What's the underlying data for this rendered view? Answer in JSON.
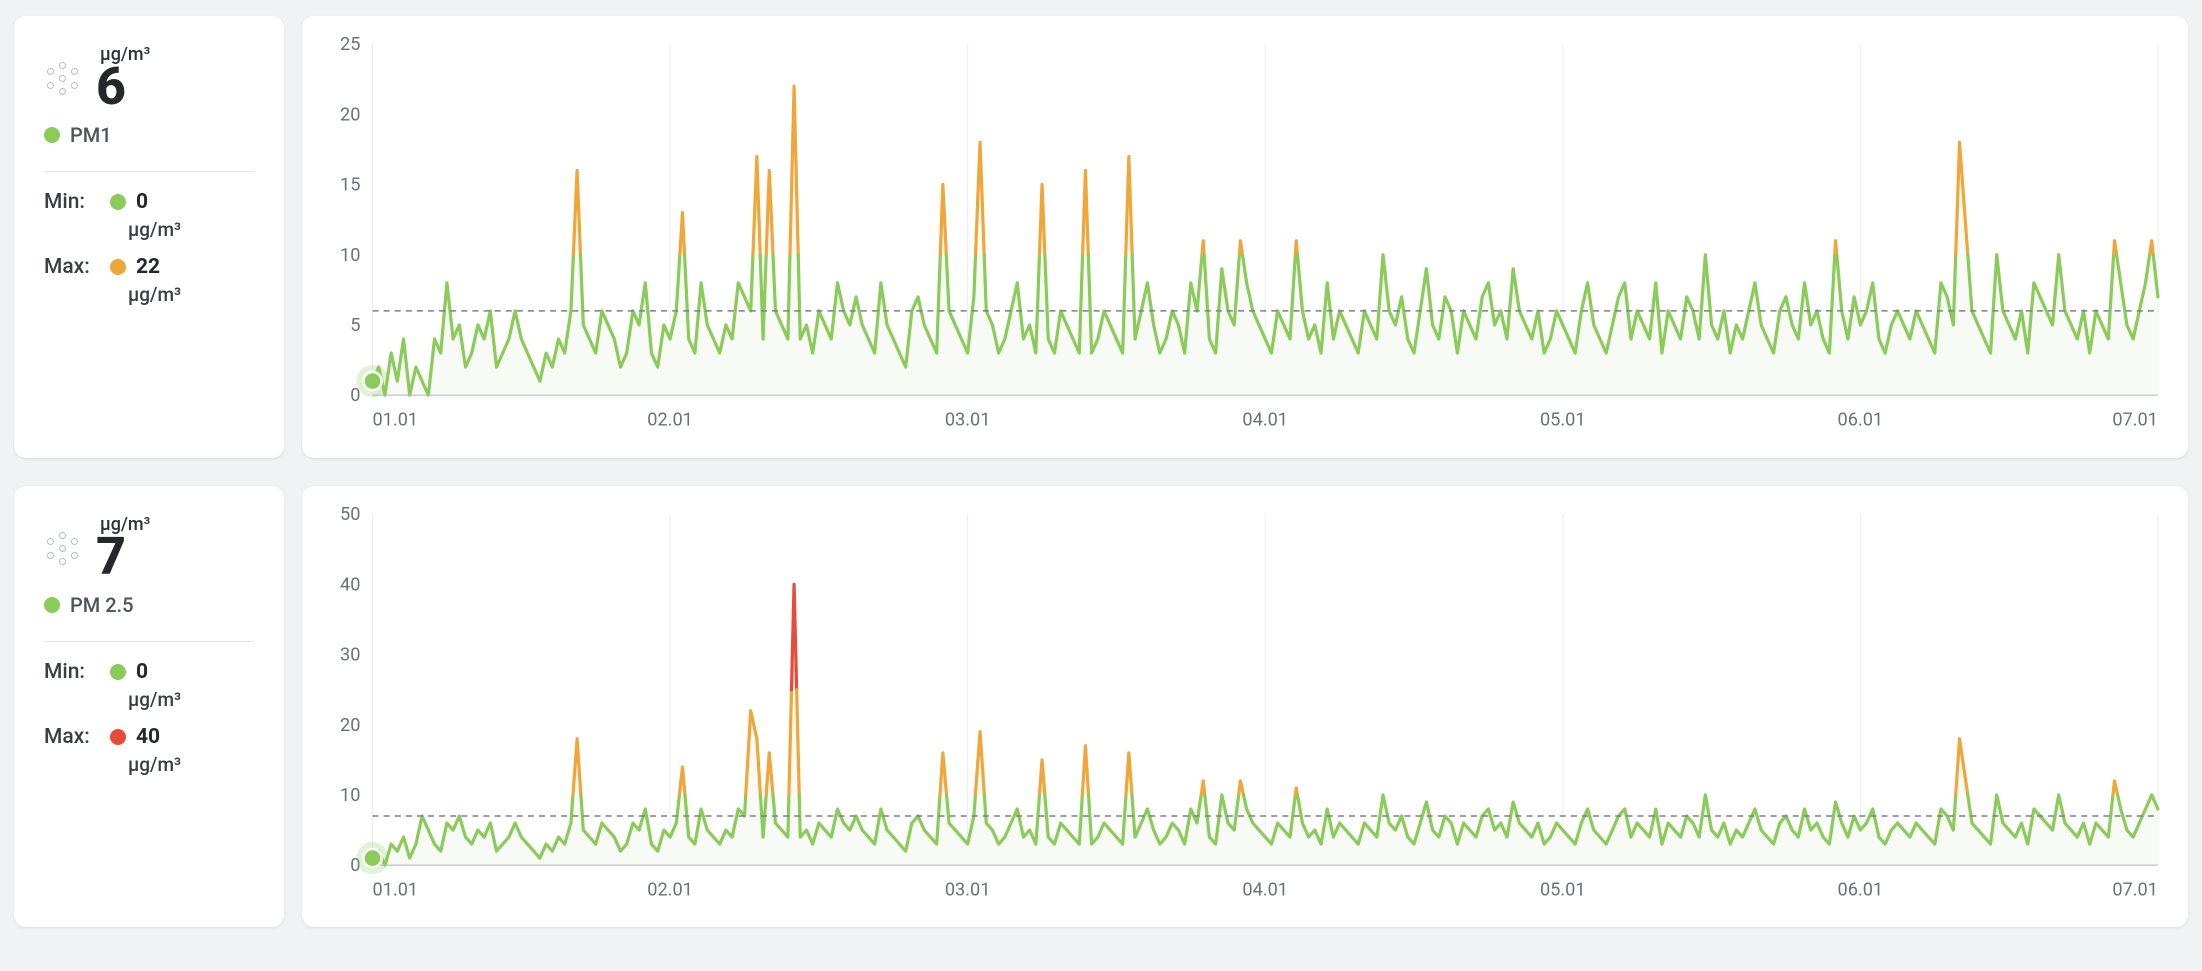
{
  "colors": {
    "green": "#8bcb5a",
    "orange": "#f0a73a",
    "red": "#e94b3a",
    "grid": "#ececee",
    "baseline": "#b1b4ba",
    "avg_dash": "#7b8089",
    "axis_text": "#6c7079",
    "card_bg": "#ffffff",
    "page_bg": "#f1f2f3",
    "area_fill": "#f8faf5"
  },
  "typography": {
    "big_value_fontsize": 52,
    "axis_fontsize": 18,
    "label_fontsize": 20
  },
  "sensors": [
    {
      "id": "pm1",
      "name_label": "PM1",
      "unit": "µg/m³",
      "current_value": "6",
      "current_color_key": "green",
      "min_label": "Min:",
      "min_value": "0",
      "min_color_key": "green",
      "max_label": "Max:",
      "max_value": "22",
      "max_color_key": "orange",
      "chart": {
        "type": "line",
        "ylim": [
          0,
          25
        ],
        "ytick_step": 5,
        "yticks": [
          0,
          5,
          10,
          15,
          20,
          25
        ],
        "x_labels": [
          "01.01",
          "02.01",
          "03.01",
          "04.01",
          "05.01",
          "06.01",
          "07.01"
        ],
        "x_tick_positions": [
          0,
          48,
          96,
          144,
          192,
          240,
          288
        ],
        "avg_reference": 6,
        "thresholds": {
          "green_max": 10,
          "orange_max": 999
        },
        "line_width": 3.2,
        "grid_vertical": true,
        "start_marker": {
          "x_index": 0,
          "value": 1
        },
        "series": [
          1,
          2,
          0,
          3,
          1,
          4,
          0,
          2,
          1,
          0,
          4,
          3,
          8,
          4,
          5,
          2,
          3,
          5,
          4,
          6,
          2,
          3,
          4,
          6,
          4,
          3,
          2,
          1,
          3,
          2,
          4,
          3,
          6,
          16,
          5,
          4,
          3,
          6,
          5,
          4,
          2,
          3,
          6,
          5,
          8,
          3,
          2,
          5,
          4,
          6,
          13,
          4,
          3,
          8,
          5,
          4,
          3,
          5,
          4,
          8,
          7,
          6,
          17,
          4,
          16,
          6,
          5,
          4,
          22,
          4,
          5,
          3,
          6,
          5,
          4,
          8,
          6,
          5,
          7,
          5,
          4,
          3,
          8,
          5,
          4,
          3,
          2,
          6,
          7,
          5,
          4,
          3,
          15,
          6,
          5,
          4,
          3,
          7,
          18,
          6,
          5,
          3,
          4,
          6,
          8,
          4,
          5,
          3,
          15,
          4,
          3,
          6,
          5,
          4,
          3,
          16,
          3,
          4,
          6,
          5,
          4,
          3,
          17,
          4,
          6,
          8,
          5,
          3,
          4,
          6,
          5,
          3,
          8,
          6,
          11,
          4,
          3,
          9,
          6,
          5,
          11,
          8,
          6,
          5,
          4,
          3,
          6,
          5,
          4,
          11,
          6,
          4,
          5,
          3,
          8,
          4,
          6,
          5,
          4,
          3,
          6,
          5,
          4,
          10,
          6,
          5,
          7,
          4,
          3,
          6,
          9,
          5,
          4,
          7,
          6,
          3,
          6,
          5,
          4,
          7,
          8,
          5,
          6,
          4,
          9,
          6,
          5,
          4,
          6,
          3,
          4,
          6,
          5,
          4,
          3,
          6,
          8,
          5,
          4,
          3,
          5,
          7,
          8,
          4,
          6,
          5,
          4,
          8,
          3,
          6,
          5,
          4,
          7,
          6,
          4,
          10,
          5,
          4,
          6,
          3,
          5,
          4,
          6,
          8,
          5,
          4,
          3,
          6,
          7,
          5,
          4,
          8,
          5,
          6,
          4,
          3,
          11,
          6,
          4,
          7,
          5,
          6,
          8,
          4,
          3,
          5,
          6,
          5,
          4,
          6,
          5,
          4,
          3,
          8,
          7,
          5,
          18,
          12,
          6,
          5,
          4,
          3,
          10,
          6,
          5,
          4,
          6,
          3,
          8,
          7,
          6,
          5,
          10,
          6,
          5,
          4,
          6,
          3,
          6,
          5,
          4,
          11,
          8,
          5,
          4,
          6,
          8,
          11,
          7
        ]
      }
    },
    {
      "id": "pm25",
      "name_label": "PM 2.5",
      "unit": "µg/m³",
      "current_value": "7",
      "current_color_key": "green",
      "min_label": "Min:",
      "min_value": "0",
      "min_color_key": "green",
      "max_label": "Max:",
      "max_value": "40",
      "max_color_key": "red",
      "chart": {
        "type": "line",
        "ylim": [
          0,
          50
        ],
        "ytick_step": 10,
        "yticks": [
          0,
          10,
          20,
          30,
          40,
          50
        ],
        "x_labels": [
          "01.01",
          "02.01",
          "03.01",
          "04.01",
          "05.01",
          "06.01",
          "07.01"
        ],
        "x_tick_positions": [
          0,
          48,
          96,
          144,
          192,
          240,
          288
        ],
        "avg_reference": 7,
        "thresholds": {
          "green_max": 10,
          "orange_max": 25
        },
        "line_width": 3.2,
        "grid_vertical": true,
        "start_marker": {
          "x_index": 0,
          "value": 1
        },
        "series": [
          1,
          2,
          0,
          3,
          2,
          4,
          1,
          3,
          7,
          5,
          3,
          2,
          6,
          5,
          7,
          4,
          3,
          5,
          4,
          6,
          2,
          3,
          4,
          6,
          4,
          3,
          2,
          1,
          3,
          2,
          4,
          3,
          6,
          18,
          5,
          4,
          3,
          6,
          5,
          4,
          2,
          3,
          6,
          5,
          8,
          3,
          2,
          5,
          4,
          6,
          14,
          4,
          3,
          8,
          5,
          4,
          3,
          5,
          4,
          8,
          7,
          22,
          18,
          4,
          16,
          6,
          5,
          4,
          40,
          4,
          5,
          3,
          6,
          5,
          4,
          8,
          6,
          5,
          7,
          5,
          4,
          3,
          8,
          5,
          4,
          3,
          2,
          6,
          7,
          5,
          4,
          3,
          16,
          6,
          5,
          4,
          3,
          7,
          19,
          6,
          5,
          3,
          4,
          6,
          8,
          4,
          5,
          3,
          15,
          4,
          3,
          6,
          5,
          4,
          3,
          17,
          3,
          4,
          6,
          5,
          4,
          3,
          16,
          4,
          6,
          8,
          5,
          3,
          4,
          6,
          5,
          3,
          8,
          6,
          12,
          4,
          3,
          10,
          6,
          5,
          12,
          8,
          6,
          5,
          4,
          3,
          6,
          5,
          4,
          11,
          6,
          4,
          5,
          3,
          8,
          4,
          6,
          5,
          4,
          3,
          6,
          5,
          4,
          10,
          6,
          5,
          7,
          4,
          3,
          6,
          9,
          5,
          4,
          7,
          6,
          3,
          6,
          5,
          4,
          7,
          8,
          5,
          6,
          4,
          9,
          6,
          5,
          4,
          6,
          3,
          4,
          6,
          5,
          4,
          3,
          6,
          8,
          5,
          4,
          3,
          5,
          7,
          8,
          4,
          6,
          5,
          4,
          8,
          3,
          6,
          5,
          4,
          7,
          6,
          4,
          10,
          5,
          4,
          6,
          3,
          5,
          4,
          6,
          8,
          5,
          4,
          3,
          6,
          7,
          5,
          4,
          8,
          5,
          6,
          4,
          3,
          9,
          6,
          4,
          7,
          5,
          6,
          8,
          4,
          3,
          5,
          6,
          5,
          4,
          6,
          5,
          4,
          3,
          8,
          7,
          5,
          18,
          12,
          6,
          5,
          4,
          3,
          10,
          6,
          5,
          4,
          6,
          3,
          8,
          7,
          6,
          5,
          10,
          6,
          5,
          4,
          6,
          3,
          6,
          5,
          4,
          12,
          8,
          5,
          4,
          6,
          8,
          10,
          8
        ]
      }
    }
  ]
}
